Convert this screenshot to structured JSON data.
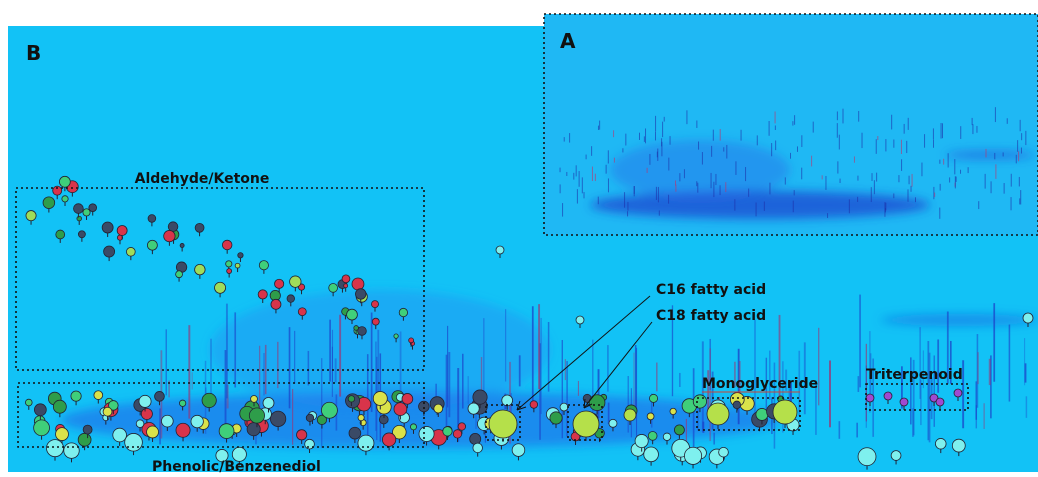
{
  "panels": {
    "a": "A",
    "b": "B"
  },
  "labels": {
    "aldehyde": "Aldehyde/Ketone",
    "c16": "C16 fatty acid",
    "c18": "C18 fatty acid",
    "monoglyceride": "Monoglyceride",
    "triterpenoid": "Triterpenoid",
    "phenolic": "Phenolic/Benzenediol"
  }
}
